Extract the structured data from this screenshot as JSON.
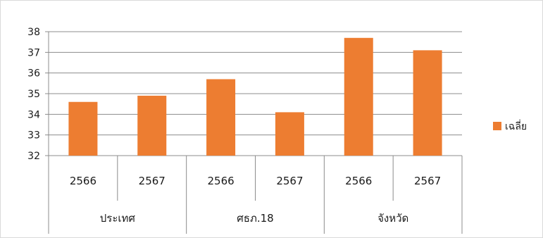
{
  "chart_data": {
    "type": "bar",
    "title": "",
    "xlabel": "",
    "ylabel": "",
    "ylim": [
      32,
      38
    ],
    "yticks": [
      32,
      33,
      34,
      35,
      36,
      37,
      38
    ],
    "grid": true,
    "legend_position": "right",
    "groups": [
      {
        "label": "ประเทศ",
        "categories": [
          "2566",
          "2567"
        ]
      },
      {
        "label": "ศธภ.18",
        "categories": [
          "2566",
          "2567"
        ]
      },
      {
        "label": "จังหวัด",
        "categories": [
          "2566",
          "2567"
        ]
      }
    ],
    "series": [
      {
        "name": "เฉลี่ย",
        "color": "#ed7d31",
        "values": [
          34.6,
          34.9,
          35.7,
          34.1,
          37.7,
          37.1
        ]
      }
    ]
  }
}
